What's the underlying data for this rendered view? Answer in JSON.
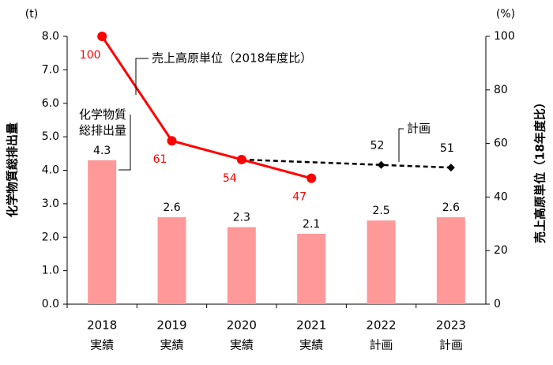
{
  "chart_data": {
    "type": "bar_line",
    "categories": [
      [
        "2018",
        "実績"
      ],
      [
        "2019",
        "実績"
      ],
      [
        "2020",
        "実績"
      ],
      [
        "2021",
        "実績"
      ],
      [
        "2022",
        "計画"
      ],
      [
        "2023",
        "計画"
      ]
    ],
    "y_unit": "(t)",
    "y2_unit": "(%)",
    "y_label": "化学物質総排出量",
    "y2_label": "売上高原単位（18年度比）",
    "ylim": [
      0,
      8
    ],
    "yticks": [
      {
        "value": 0,
        "label": "0.0"
      },
      {
        "value": 1,
        "label": "1.0"
      },
      {
        "value": 2,
        "label": "2.0"
      },
      {
        "value": 3,
        "label": "3.0"
      },
      {
        "value": 4,
        "label": "4.0"
      },
      {
        "value": 5,
        "label": "5.0"
      },
      {
        "value": 6,
        "label": "6.0"
      },
      {
        "value": 7,
        "label": "7.0"
      },
      {
        "value": 8,
        "label": "8.0"
      }
    ],
    "y2lim": [
      0,
      100
    ],
    "y2ticks": [
      0,
      20,
      40,
      60,
      80,
      100
    ],
    "series": [
      {
        "name": "化学物質総排出量",
        "kind": "bar",
        "color": "#ff9999",
        "values": [
          4.3,
          2.6,
          2.3,
          2.1,
          2.5,
          2.6
        ]
      },
      {
        "name": "売上高原単位（2018年度比）",
        "kind": "line",
        "axis": "y2",
        "color": "#ff0000",
        "values": [
          100,
          61,
          54,
          47,
          null,
          null
        ]
      },
      {
        "name": "計画",
        "kind": "dashed",
        "axis": "y2",
        "color": "#000000",
        "values": [
          null,
          null,
          54,
          53,
          52,
          51
        ]
      }
    ]
  }
}
